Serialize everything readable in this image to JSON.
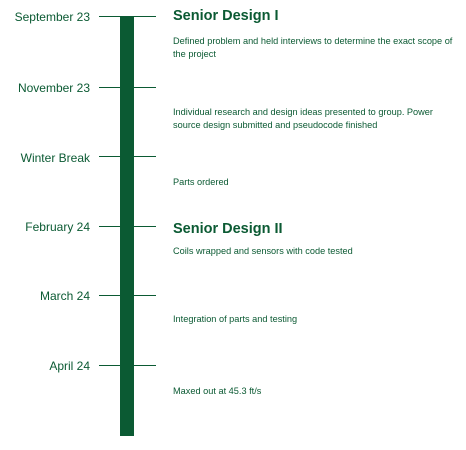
{
  "timeline": {
    "milestones": [
      {
        "date": "September 23",
        "heading": "Senior Design I",
        "description": "Defined problem and held interviews to determine the exact scope of the project"
      },
      {
        "date": "November 23",
        "heading": "",
        "description": "Individual research and design ideas presented to group. Power source design submitted and pseudocode finished"
      },
      {
        "date": "Winter Break",
        "heading": "",
        "description": "Parts ordered"
      },
      {
        "date": "February 24",
        "heading": "Senior Design II",
        "description": "Coils wrapped and sensors with code tested"
      },
      {
        "date": "March 24",
        "heading": "",
        "description": "Integration of parts and testing"
      },
      {
        "date": "April 24",
        "heading": "",
        "description": "Maxed out at 45.3 ft/s"
      }
    ]
  }
}
